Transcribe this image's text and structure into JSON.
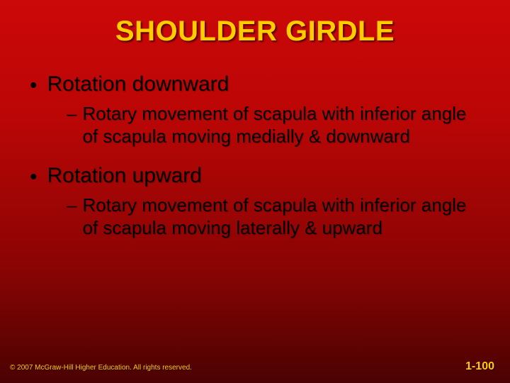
{
  "colors": {
    "title_color": "#ffcc00",
    "body_color": "#000000",
    "footer_color": "#ffcc00",
    "background_top": "#cc0808",
    "background_bottom": "#4a0202"
  },
  "typography": {
    "title_fontsize": 40,
    "level1_fontsize": 30,
    "level2_fontsize": 26,
    "footer_left_fontsize": 10,
    "footer_right_fontsize": 16,
    "font_family": "Arial"
  },
  "title": "SHOULDER GIRDLE",
  "bullets": [
    {
      "text": "Rotation downward",
      "sub": [
        "Rotary movement of scapula with inferior angle of scapula moving medially & downward"
      ]
    },
    {
      "text": "Rotation upward",
      "sub": [
        "Rotary movement of scapula with inferior angle of scapula moving laterally & upward"
      ]
    }
  ],
  "footer": {
    "copyright": "© 2007 McGraw-Hill Higher Education. All rights reserved.",
    "page": "1-100"
  }
}
